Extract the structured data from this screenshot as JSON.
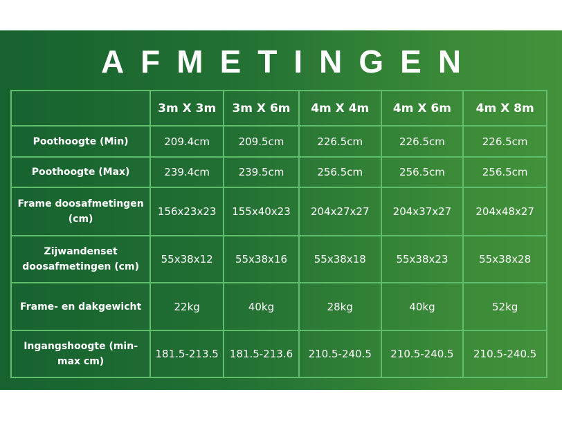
{
  "title": "AFMETINGEN",
  "columns": [
    "",
    "3m X 3m",
    "3m X 6m",
    "4m X 4m",
    "4m X 6m",
    "4m X 8m"
  ],
  "rows": [
    {
      "label": "Poothoogte (Min)",
      "values": [
        "209.4cm",
        "209.5cm",
        "226.5cm",
        "226.5cm",
        "226.5cm"
      ]
    },
    {
      "label": "Poothoogte (Max)",
      "values": [
        "239.4cm",
        "239.5cm",
        "256.5cm",
        "256.5cm",
        "256.5cm"
      ]
    },
    {
      "label": "Frame doosafmetingen (cm)",
      "values": [
        "156x23x23",
        "155x40x23",
        "204x27x27",
        "204x37x27",
        "204x48x27"
      ]
    },
    {
      "label": "Zijwandenset doosafmetingen (cm)",
      "values": [
        "55x38x12",
        "55x38x16",
        "55x38x18",
        "55x38x23",
        "55x38x28"
      ]
    },
    {
      "label": "Frame- en dakgewicht",
      "values": [
        "22kg",
        "40kg",
        "28kg",
        "40kg",
        "52kg"
      ]
    },
    {
      "label": "Ingangshoogte (min-max cm)",
      "values": [
        "181.5-213.5",
        "181.5-213.6",
        "210.5-240.5",
        "210.5-240.5",
        "210.5-240.5"
      ]
    }
  ],
  "colors": {
    "background_dark": "#17622f",
    "background_light": "#43913a",
    "grid": "#5fbd6c",
    "text": "#ffffff"
  }
}
